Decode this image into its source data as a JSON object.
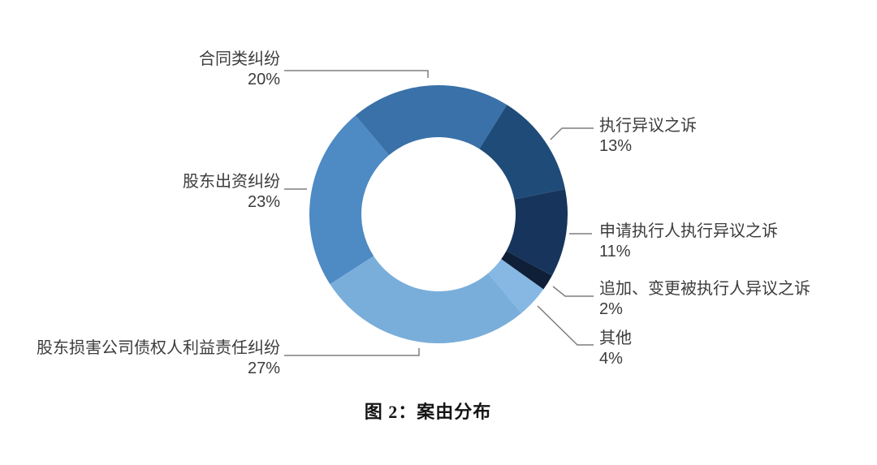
{
  "chart_data": {
    "type": "pie",
    "subtype": "donut",
    "title": "图 2：案由分布",
    "total": 100,
    "direction": "clockwise",
    "start_angle_deg_from_top": -40,
    "donut_hole_ratio": 0.6,
    "legend": "none",
    "labels_position": "outside-callouts-with-leader-lines",
    "label_text_color": "#3c3c3c",
    "leader_line_color": "#7f7f7f",
    "background_color": "#ffffff",
    "slices": [
      {
        "id": "contract-disputes",
        "label": "合同类纠纷",
        "value": 20,
        "pct": "20%",
        "color": "#3a71a9"
      },
      {
        "id": "enforcement-objection-suit",
        "label": "执行异议之诉",
        "value": 13,
        "pct": "13%",
        "color": "#1f4b78"
      },
      {
        "id": "applicant-enforcement-objection-suit",
        "label": "申请执行人执行异议之诉",
        "value": 11,
        "pct": "11%",
        "color": "#17355c"
      },
      {
        "id": "add-change-judgment-debtor-objection-suit",
        "label": "追加、变更被执行人异议之诉",
        "value": 2,
        "pct": "2%",
        "color": "#101f38"
      },
      {
        "id": "others",
        "label": "其他",
        "value": 4,
        "pct": "4%",
        "color": "#86b8e3"
      },
      {
        "id": "shareholder-harming-creditor-interests",
        "label": "股东损害公司债权人利益责任纠纷",
        "value": 27,
        "pct": "27%",
        "color": "#7aaeda"
      },
      {
        "id": "shareholder-capital-contribution-dispute",
        "label": "股东出资纠纷",
        "value": 23,
        "pct": "23%",
        "color": "#4e8ac3"
      }
    ]
  }
}
